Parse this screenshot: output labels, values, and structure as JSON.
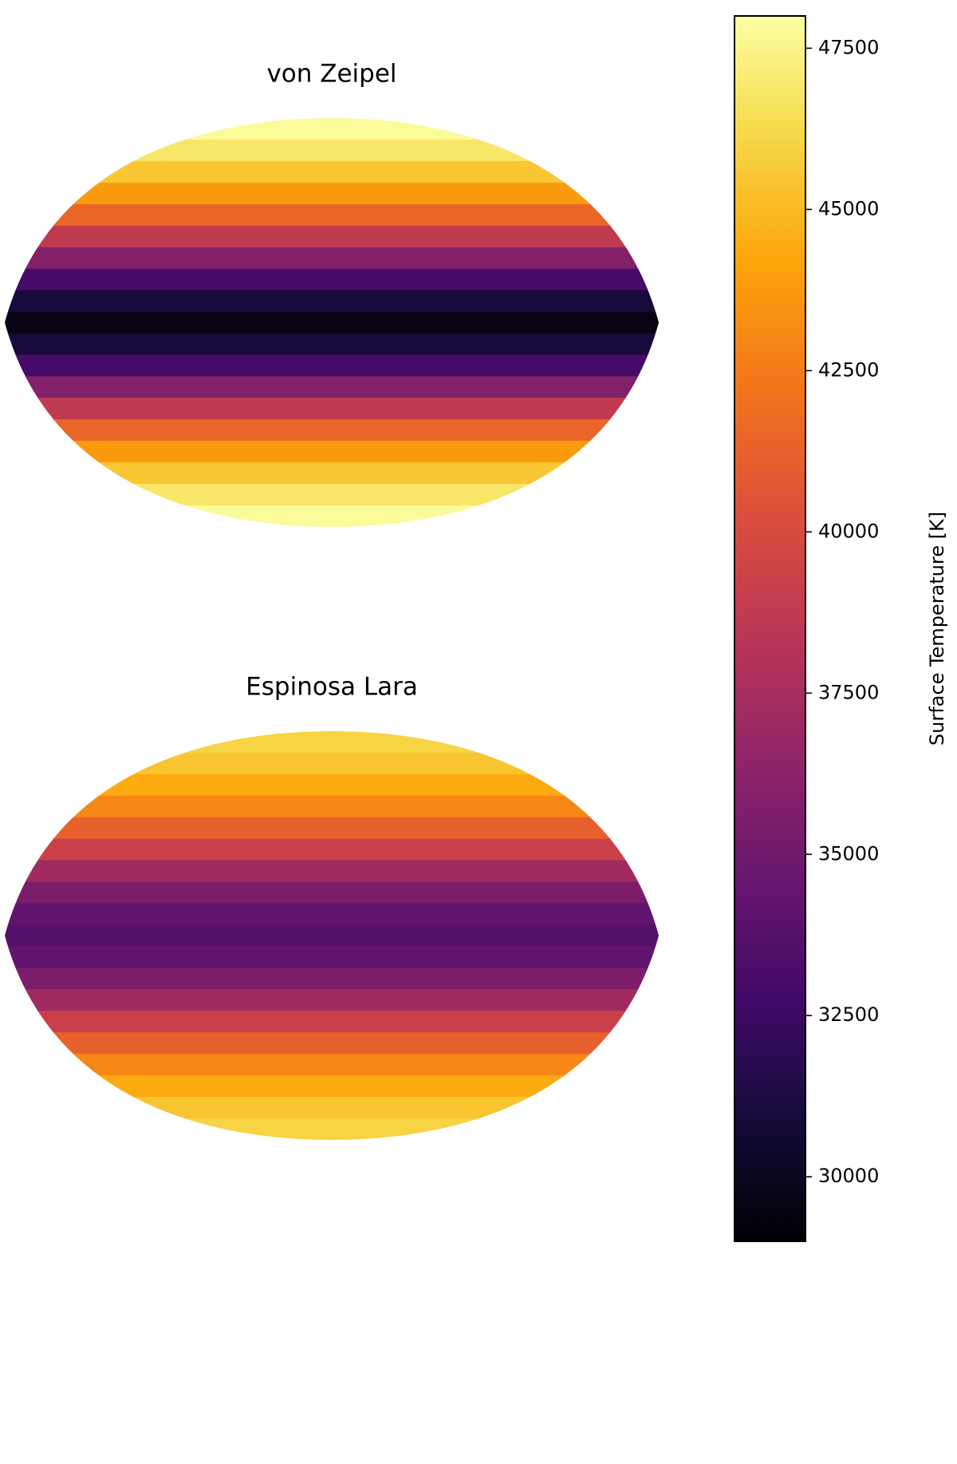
{
  "chart_data": {
    "type": "map",
    "panels": [
      {
        "title": "von Zeipel",
        "categories": [
          null,
          null,
          null,
          null,
          null,
          null,
          null,
          null,
          null,
          null,
          null,
          null,
          null,
          null,
          null,
          null,
          null,
          null,
          null
        ],
        "values": [
          47800,
          46800,
          45500,
          43800,
          41500,
          38800,
          35800,
          33000,
          31000,
          29600,
          31000,
          33000,
          35800,
          38800,
          41500,
          43800,
          45500,
          46800,
          47800
        ]
      },
      {
        "title": "Espinosa Lara",
        "categories": [
          null,
          null,
          null,
          null,
          null,
          null,
          null,
          null,
          null,
          null,
          null,
          null,
          null,
          null,
          null,
          null,
          null,
          null,
          null
        ],
        "values": [
          46000,
          45400,
          44400,
          43000,
          41200,
          39200,
          37200,
          35500,
          34300,
          33700,
          34300,
          35500,
          37200,
          39200,
          41200,
          43000,
          44400,
          45400,
          46000
        ]
      }
    ],
    "colorbar": {
      "label": "Surface Temperature [K]",
      "lim": [
        29000,
        48000
      ],
      "ticks": [
        30000,
        32500,
        35000,
        37500,
        40000,
        42500,
        45000,
        47500
      ],
      "cmap": "inferno"
    }
  }
}
